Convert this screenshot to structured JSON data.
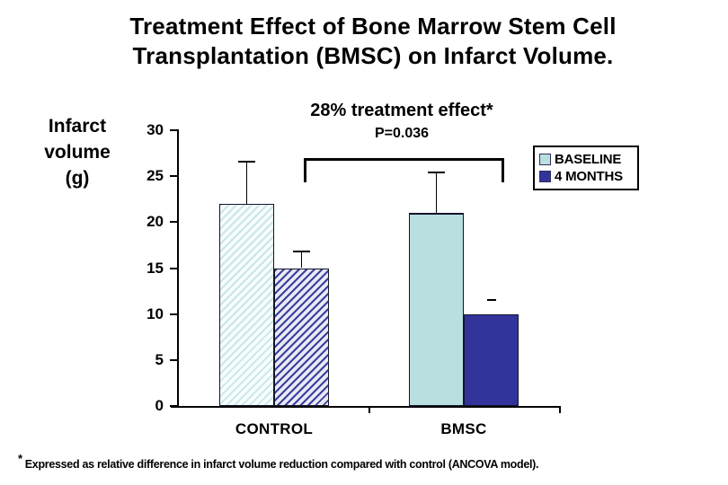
{
  "title": {
    "line1": "Treatment Effect of Bone Marrow Stem Cell",
    "line2": "Transplantation (BMSC) on Infarct Volume."
  },
  "y_axis_title": {
    "line1": "Infarct",
    "line2": "volume",
    "line3": "(g)"
  },
  "annotation": {
    "effect": "28% treatment effect*",
    "p_value": "P=0.036"
  },
  "legend": {
    "items": [
      {
        "label": "BASELINE"
      },
      {
        "label": "4 MONTHS"
      }
    ]
  },
  "footnote": {
    "star": "*",
    "text": "Expressed as relative difference in infarct volume reduction compared with control (ANCOVA model)."
  },
  "colors": {
    "baseline_fill": "#b9dfe1",
    "months_fill": "#32339b",
    "baseline_hatch_bg": "#f8fdfd",
    "baseline_hatch_line": "#c9e6e8",
    "months_hatch_bg": "#e9e9f5",
    "months_hatch_line": "#3c3f9b"
  },
  "chart_data": {
    "type": "bar",
    "categories": [
      "CONTROL",
      "BMSC"
    ],
    "series": [
      {
        "name": "BASELINE",
        "values": [
          22,
          21
        ],
        "errors": [
          {
            "top": 26.7
          },
          {
            "top": 25.5
          }
        ]
      },
      {
        "name": "4 MONTHS",
        "values": [
          15,
          10
        ],
        "errors": [
          {
            "top": 16.9
          },
          {
            "top": 11.6,
            "cap_only": true
          }
        ]
      }
    ],
    "title": "28% treatment effect*  P=0.036",
    "xlabel": "",
    "ylabel": "Infarct volume (g)",
    "yticks": [
      0,
      5,
      10,
      15,
      20,
      25,
      30
    ],
    "ylim": [
      0,
      30
    ],
    "grid": false,
    "legend_position": "right"
  }
}
